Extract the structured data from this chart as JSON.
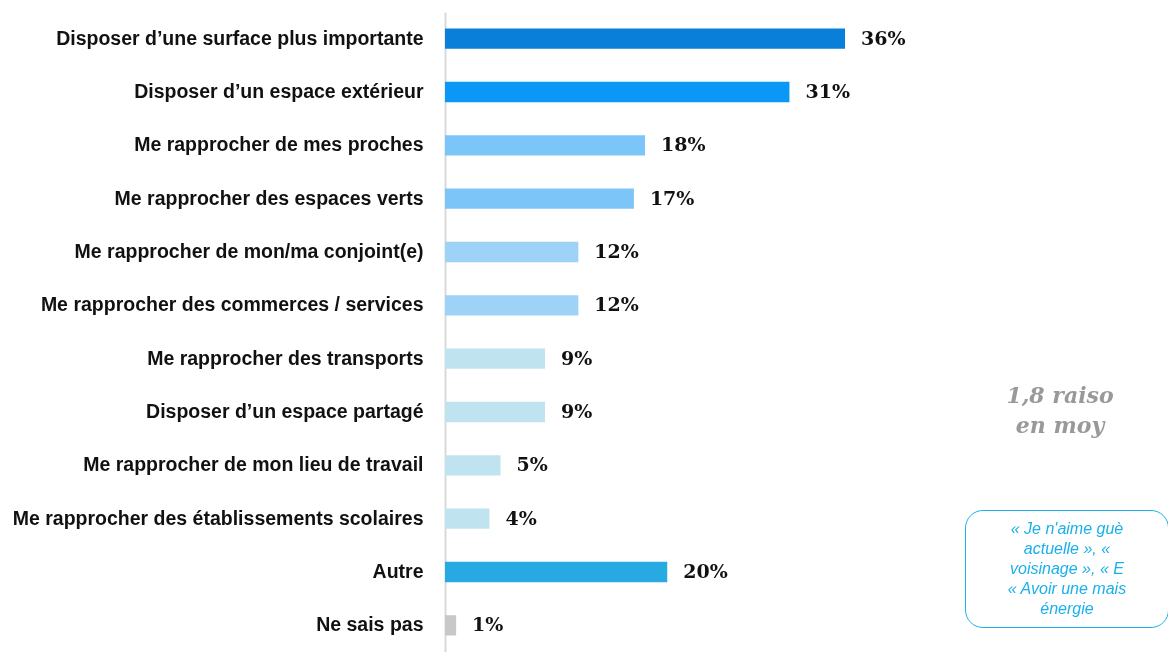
{
  "chart_data": {
    "type": "bar",
    "orientation": "horizontal",
    "data_labels": true,
    "categories": [
      "Disposer d’une surface plus importante",
      "Disposer d’un espace extérieur",
      "Me rapprocher de mes proches",
      "Me rapprocher des espaces verts",
      "Me rapprocher de mon/ma conjoint(e)",
      "Me rapprocher des commerces / services",
      "Me rapprocher des transports",
      "Disposer d’un espace partagé",
      "Me rapprocher de mon lieu de travail",
      "Me rapprocher des établissements scolaires",
      "Autre",
      "Ne sais pas"
    ],
    "values": [
      36,
      31,
      18,
      17,
      12,
      12,
      9,
      9,
      5,
      4,
      20,
      1
    ],
    "value_labels": [
      "36%",
      "31%",
      "18%",
      "17%",
      "12%",
      "12%",
      "9%",
      "9%",
      "5%",
      "4%",
      "20%",
      "1%"
    ],
    "colors": [
      "#0a7fd9",
      "#0a97f5",
      "#7cc5f8",
      "#7cc5f8",
      "#9fd2f7",
      "#9fd2f7",
      "#c0e4ef",
      "#c0e4ef",
      "#c0e4ef",
      "#c0e4ef",
      "#27a9e1",
      "#c8c8c8"
    ],
    "annotations": [
      "1,8 raiso\nen moy",
      "«  Je n'aime guè\nactuelle », «\nvoisinage », « E\n« Avoir une mais\nénergie"
    ]
  }
}
